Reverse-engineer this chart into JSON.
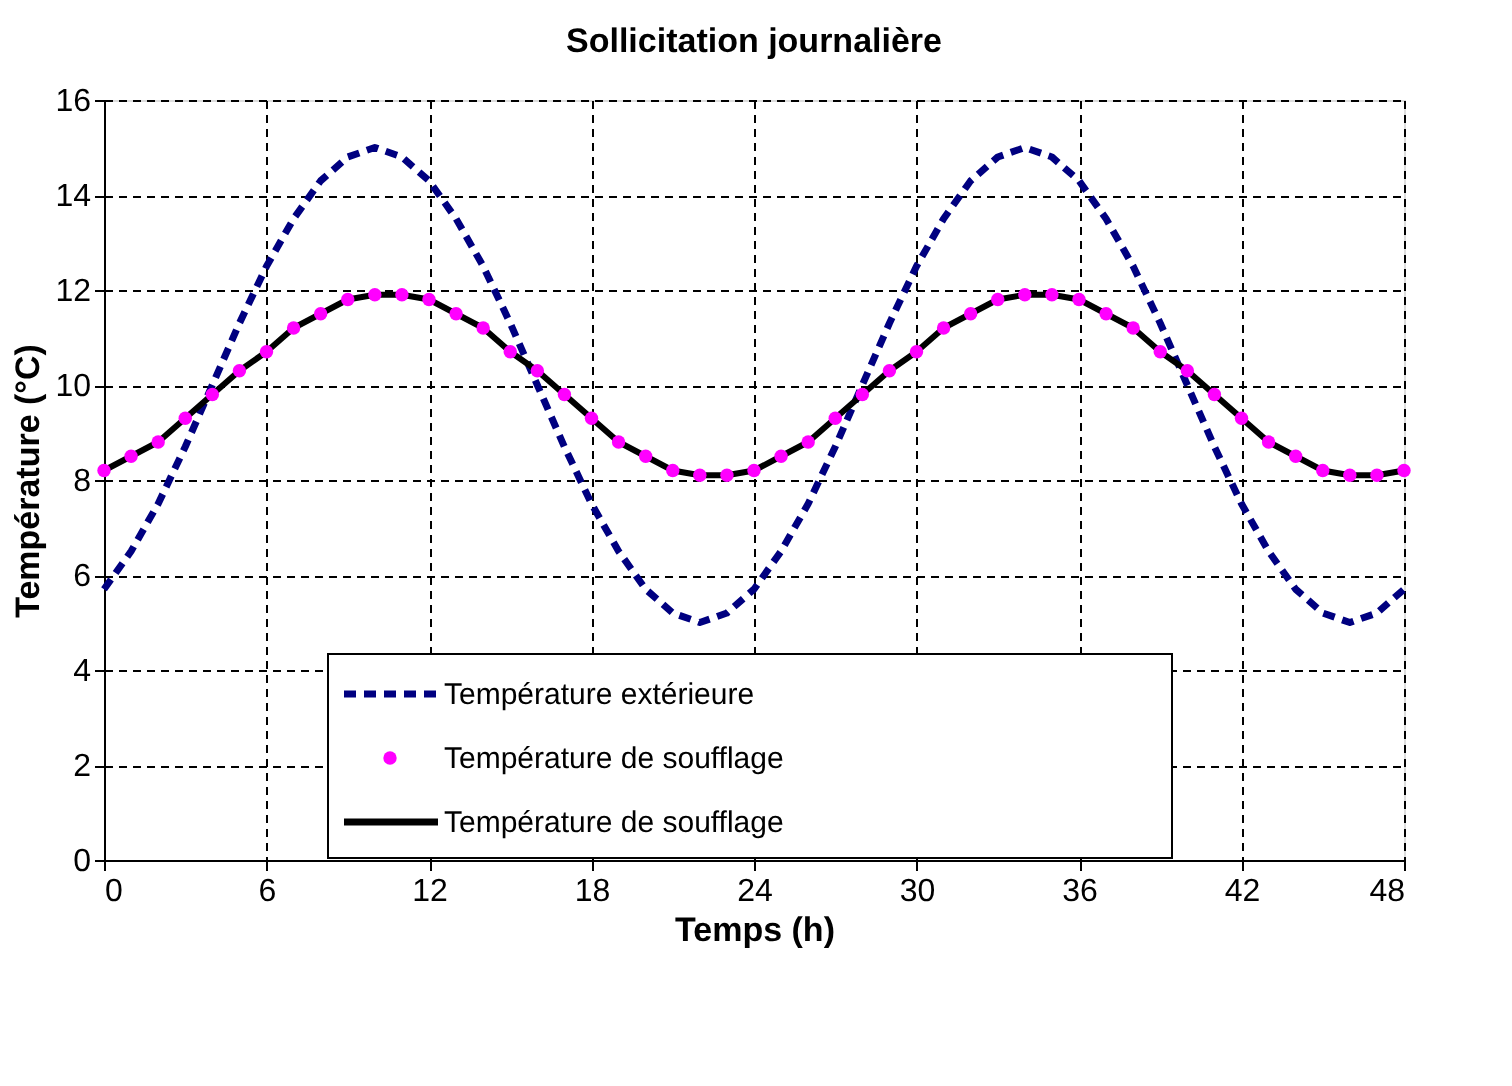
{
  "chart_data": {
    "type": "line",
    "title": "Sollicitation journalière",
    "xlabel": "Temps (h)",
    "ylabel": "Température (°C)",
    "x": [
      0,
      1,
      2,
      3,
      4,
      5,
      6,
      7,
      8,
      9,
      10,
      11,
      12,
      13,
      14,
      15,
      16,
      17,
      18,
      19,
      20,
      21,
      22,
      23,
      24,
      25,
      26,
      27,
      28,
      29,
      30,
      31,
      32,
      33,
      34,
      35,
      36,
      37,
      38,
      39,
      40,
      41,
      42,
      43,
      44,
      45,
      46,
      47,
      48
    ],
    "series": [
      {
        "name": "Température extérieure",
        "color": "#000080",
        "type": "line",
        "line_style": "dashed",
        "marker": "none",
        "values": [
          5.7,
          6.5,
          7.5,
          8.7,
          10.0,
          11.3,
          12.5,
          13.5,
          14.3,
          14.8,
          15.0,
          14.8,
          14.3,
          13.5,
          12.5,
          11.3,
          10.0,
          8.7,
          7.5,
          6.5,
          5.7,
          5.2,
          5.0,
          5.2,
          5.7,
          6.5,
          7.5,
          8.7,
          10.0,
          11.3,
          12.5,
          13.5,
          14.3,
          14.8,
          15.0,
          14.8,
          14.3,
          13.5,
          12.5,
          11.3,
          10.0,
          8.7,
          7.5,
          6.5,
          5.7,
          5.2,
          5.0,
          5.2,
          5.7
        ]
      },
      {
        "name": "Température de soufflage",
        "color": "#ff00ff",
        "type": "scatter",
        "marker": "circle",
        "values": [
          8.2,
          8.5,
          8.8,
          9.3,
          9.8,
          10.3,
          10.7,
          11.2,
          11.5,
          11.8,
          11.9,
          11.9,
          11.8,
          11.5,
          11.2,
          10.7,
          10.3,
          9.8,
          9.3,
          8.8,
          8.5,
          8.2,
          8.1,
          8.1,
          8.2,
          8.5,
          8.8,
          9.3,
          9.8,
          10.3,
          10.7,
          11.2,
          11.5,
          11.8,
          11.9,
          11.9,
          11.8,
          11.5,
          11.2,
          10.7,
          10.3,
          9.8,
          9.3,
          8.8,
          8.5,
          8.2,
          8.1,
          8.1,
          8.2
        ]
      },
      {
        "name": "Température de soufflage",
        "color": "#000000",
        "type": "line",
        "line_style": "solid",
        "marker": "none",
        "values": [
          8.2,
          8.5,
          8.8,
          9.3,
          9.8,
          10.3,
          10.7,
          11.2,
          11.5,
          11.8,
          11.9,
          11.9,
          11.8,
          11.5,
          11.2,
          10.7,
          10.3,
          9.8,
          9.3,
          8.8,
          8.5,
          8.2,
          8.1,
          8.1,
          8.2,
          8.5,
          8.8,
          9.3,
          9.8,
          10.3,
          10.7,
          11.2,
          11.5,
          11.8,
          11.9,
          11.9,
          11.8,
          11.5,
          11.2,
          10.7,
          10.3,
          9.8,
          9.3,
          8.8,
          8.5,
          8.2,
          8.1,
          8.1,
          8.2
        ]
      }
    ],
    "xlim": [
      0,
      48
    ],
    "xticks": [
      0,
      6,
      12,
      18,
      24,
      30,
      36,
      42,
      48
    ],
    "ylim": [
      0,
      16
    ],
    "yticks": [
      0,
      2,
      4,
      6,
      8,
      10,
      12,
      14,
      16
    ],
    "grid": true,
    "legend": "bottom"
  }
}
